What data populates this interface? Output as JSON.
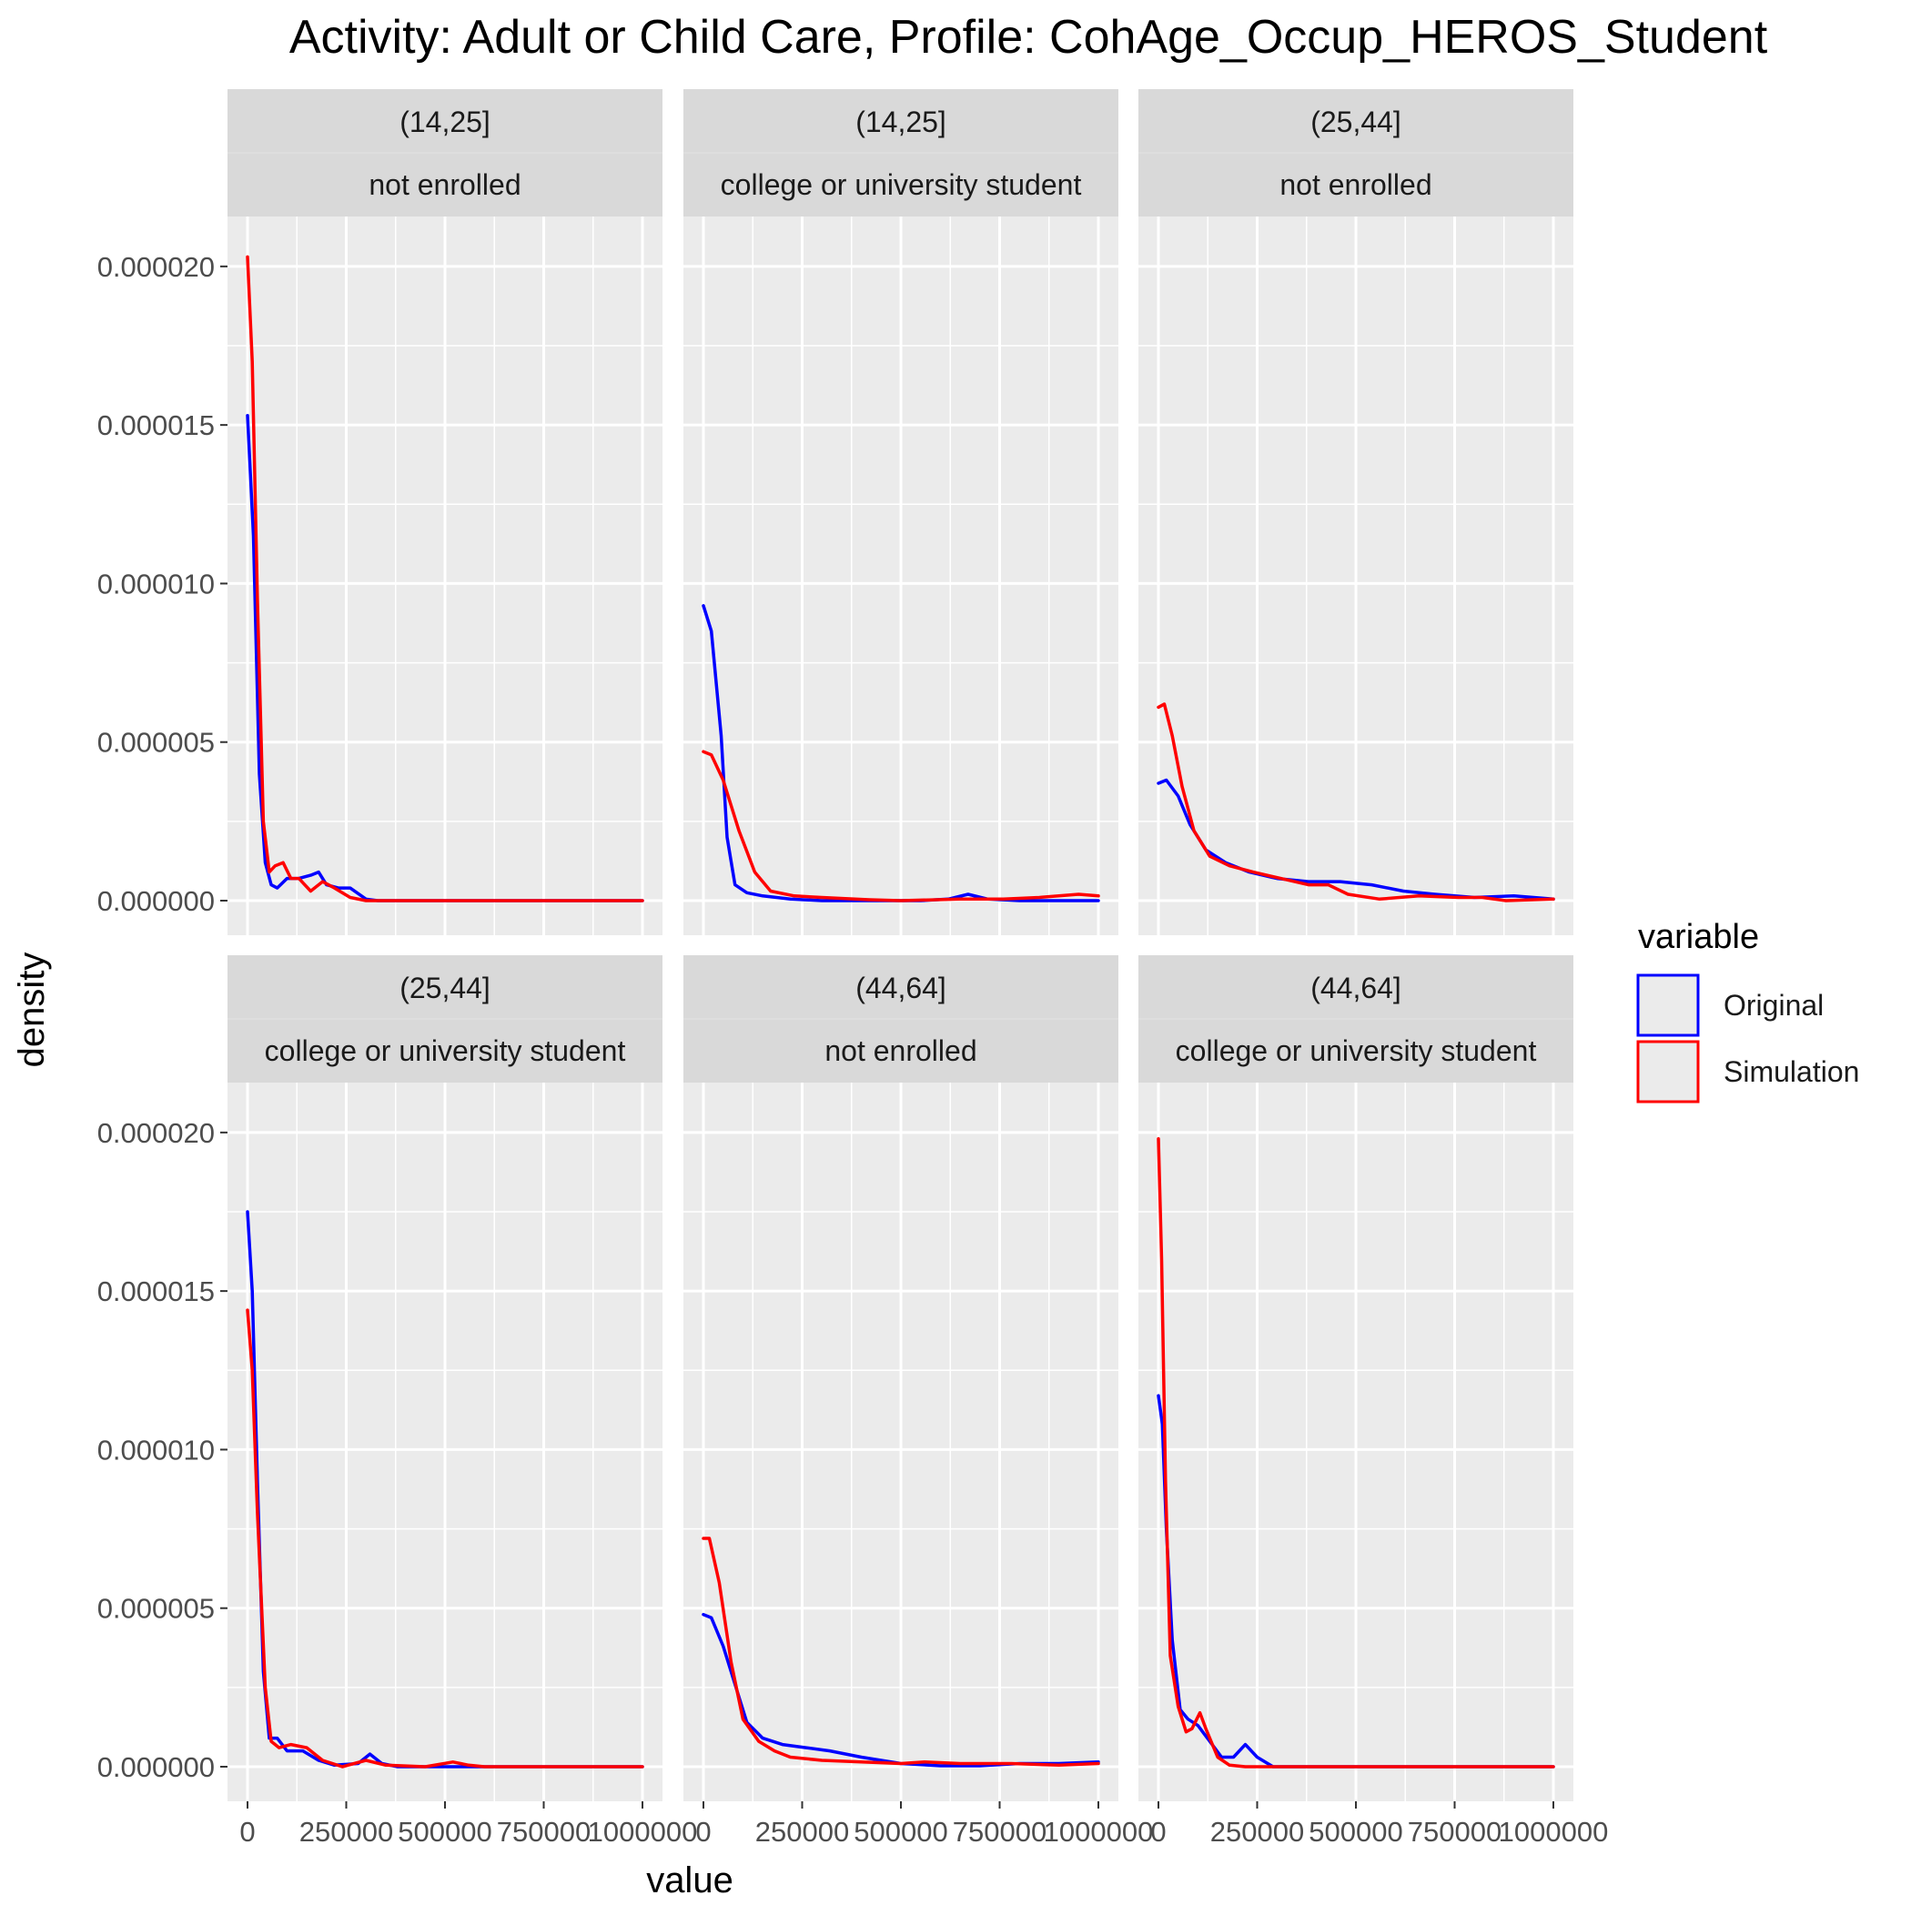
{
  "chart_data": {
    "type": "line",
    "title": "Activity: Adult or Child Care, Profile: CohAge_Occup_HEROS_Student",
    "xlabel": "value",
    "ylabel": "density",
    "xlim": [
      0,
      1000000
    ],
    "ylim": [
      0,
      2.1e-05
    ],
    "x_ticks": [
      0,
      250000,
      500000,
      750000,
      1000000
    ],
    "x_tick_labels": [
      "0",
      "250000",
      "500000",
      "750000",
      "1000000"
    ],
    "y_ticks": [
      0,
      5e-06,
      1e-05,
      1.5e-05,
      2e-05
    ],
    "y_tick_labels": [
      "0.000000",
      "0.000005",
      "0.000010",
      "0.000015",
      "0.000020"
    ],
    "grid": true,
    "legend": {
      "title": "variable",
      "placement": "right",
      "entries": [
        {
          "name": "Original",
          "color": "#0000ff"
        },
        {
          "name": "Simulation",
          "color": "#ff0000"
        }
      ]
    },
    "panels": [
      {
        "strip_top": "(14,25]",
        "strip_bottom": "not enrolled",
        "series": [
          {
            "name": "Original",
            "color": "#0000ff",
            "points": [
              [
                0,
                1.53e-05
              ],
              [
                15000,
                1.15e-05
              ],
              [
                30000,
                4e-06
              ],
              [
                45000,
                1.2e-06
              ],
              [
                60000,
                5e-07
              ],
              [
                75000,
                4e-07
              ],
              [
                100000,
                7e-07
              ],
              [
                130000,
                7e-07
              ],
              [
                160000,
                8e-07
              ],
              [
                180000,
                9e-07
              ],
              [
                200000,
                5e-07
              ],
              [
                230000,
                4e-07
              ],
              [
                260000,
                4e-07
              ],
              [
                300000,
                5e-08
              ],
              [
                330000,
                0
              ],
              [
                1000000,
                0
              ]
            ]
          },
          {
            "name": "Simulation",
            "color": "#ff0000",
            "points": [
              [
                0,
                2.03e-05
              ],
              [
                12000,
                1.7e-05
              ],
              [
                25000,
                9.5e-06
              ],
              [
                40000,
                2.5e-06
              ],
              [
                55000,
                9e-07
              ],
              [
                70000,
                1.1e-06
              ],
              [
                90000,
                1.2e-06
              ],
              [
                110000,
                7e-07
              ],
              [
                130000,
                7e-07
              ],
              [
                160000,
                3e-07
              ],
              [
                190000,
                6e-07
              ],
              [
                220000,
                4e-07
              ],
              [
                260000,
                1e-07
              ],
              [
                300000,
                0
              ],
              [
                1000000,
                0
              ]
            ]
          }
        ]
      },
      {
        "strip_top": "(14,25]",
        "strip_bottom": "college or university student",
        "series": [
          {
            "name": "Original",
            "color": "#0000ff",
            "points": [
              [
                0,
                9.3e-06
              ],
              [
                20000,
                8.5e-06
              ],
              [
                45000,
                5.2e-06
              ],
              [
                60000,
                2e-06
              ],
              [
                80000,
                5e-07
              ],
              [
                110000,
                2.5e-07
              ],
              [
                150000,
                1.5e-07
              ],
              [
                220000,
                5e-08
              ],
              [
                300000,
                0
              ],
              [
                550000,
                0
              ],
              [
                620000,
                5e-08
              ],
              [
                670000,
                2e-07
              ],
              [
                720000,
                5e-08
              ],
              [
                800000,
                0
              ],
              [
                1000000,
                0
              ]
            ]
          },
          {
            "name": "Simulation",
            "color": "#ff0000",
            "points": [
              [
                0,
                4.7e-06
              ],
              [
                20000,
                4.6e-06
              ],
              [
                50000,
                3.8e-06
              ],
              [
                90000,
                2.2e-06
              ],
              [
                130000,
                9e-07
              ],
              [
                170000,
                3e-07
              ],
              [
                230000,
                1.5e-07
              ],
              [
                300000,
                1e-07
              ],
              [
                420000,
                3e-08
              ],
              [
                500000,
                0
              ],
              [
                650000,
                5e-08
              ],
              [
                760000,
                5e-08
              ],
              [
                850000,
                1e-07
              ],
              [
                950000,
                2e-07
              ],
              [
                1000000,
                1.5e-07
              ]
            ]
          }
        ]
      },
      {
        "strip_top": "(25,44]",
        "strip_bottom": "not enrolled",
        "series": [
          {
            "name": "Original",
            "color": "#0000ff",
            "points": [
              [
                0,
                3.7e-06
              ],
              [
                20000,
                3.8e-06
              ],
              [
                50000,
                3.3e-06
              ],
              [
                80000,
                2.4e-06
              ],
              [
                120000,
                1.6e-06
              ],
              [
                170000,
                1.2e-06
              ],
              [
                230000,
                9e-07
              ],
              [
                300000,
                7e-07
              ],
              [
                380000,
                6e-07
              ],
              [
                460000,
                6e-07
              ],
              [
                540000,
                5e-07
              ],
              [
                620000,
                3e-07
              ],
              [
                700000,
                2e-07
              ],
              [
                800000,
                1e-07
              ],
              [
                900000,
                1.5e-07
              ],
              [
                1000000,
                5e-08
              ]
            ]
          },
          {
            "name": "Simulation",
            "color": "#ff0000",
            "points": [
              [
                0,
                6.1e-06
              ],
              [
                15000,
                6.2e-06
              ],
              [
                35000,
                5.2e-06
              ],
              [
                60000,
                3.6e-06
              ],
              [
                90000,
                2.2e-06
              ],
              [
                130000,
                1.4e-06
              ],
              [
                180000,
                1.1e-06
              ],
              [
                240000,
                9e-07
              ],
              [
                310000,
                7e-07
              ],
              [
                380000,
                5e-07
              ],
              [
                430000,
                5e-07
              ],
              [
                480000,
                2e-07
              ],
              [
                560000,
                5e-08
              ],
              [
                660000,
                1.5e-07
              ],
              [
                760000,
                1e-07
              ],
              [
                820000,
                1e-07
              ],
              [
                880000,
                0
              ],
              [
                1000000,
                5e-08
              ]
            ]
          }
        ]
      },
      {
        "strip_top": "(25,44]",
        "strip_bottom": "college or university student",
        "series": [
          {
            "name": "Original",
            "color": "#0000ff",
            "points": [
              [
                0,
                1.75e-05
              ],
              [
                12000,
                1.5e-05
              ],
              [
                25000,
                9e-06
              ],
              [
                40000,
                3e-06
              ],
              [
                55000,
                9e-07
              ],
              [
                75000,
                9e-07
              ],
              [
                100000,
                5e-07
              ],
              [
                140000,
                5e-07
              ],
              [
                180000,
                2e-07
              ],
              [
                220000,
                5e-08
              ],
              [
                280000,
                1e-07
              ],
              [
                310000,
                4e-07
              ],
              [
                340000,
                1e-07
              ],
              [
                380000,
                0
              ],
              [
                1000000,
                0
              ]
            ]
          },
          {
            "name": "Simulation",
            "color": "#ff0000",
            "points": [
              [
                0,
                1.44e-05
              ],
              [
                12000,
                1.25e-05
              ],
              [
                25000,
                8e-06
              ],
              [
                45000,
                2.5e-06
              ],
              [
                60000,
                8e-07
              ],
              [
                80000,
                6e-07
              ],
              [
                110000,
                7e-07
              ],
              [
                150000,
                6e-07
              ],
              [
                190000,
                2e-07
              ],
              [
                240000,
                0
              ],
              [
                300000,
                2e-07
              ],
              [
                350000,
                5e-08
              ],
              [
                450000,
                0
              ],
              [
                520000,
                1.5e-07
              ],
              [
                560000,
                5e-08
              ],
              [
                600000,
                0
              ],
              [
                1000000,
                0
              ]
            ]
          }
        ]
      },
      {
        "strip_top": "(44,64]",
        "strip_bottom": "not enrolled",
        "series": [
          {
            "name": "Original",
            "color": "#0000ff",
            "points": [
              [
                0,
                4.8e-06
              ],
              [
                20000,
                4.7e-06
              ],
              [
                50000,
                3.8e-06
              ],
              [
                80000,
                2.6e-06
              ],
              [
                110000,
                1.4e-06
              ],
              [
                150000,
                9e-07
              ],
              [
                200000,
                7e-07
              ],
              [
                260000,
                6e-07
              ],
              [
                320000,
                5e-07
              ],
              [
                400000,
                3e-07
              ],
              [
                500000,
                1e-07
              ],
              [
                600000,
                3e-08
              ],
              [
                700000,
                3e-08
              ],
              [
                800000,
                1e-07
              ],
              [
                900000,
                1e-07
              ],
              [
                1000000,
                1.5e-07
              ]
            ]
          },
          {
            "name": "Simulation",
            "color": "#ff0000",
            "points": [
              [
                0,
                7.2e-06
              ],
              [
                15000,
                7.2e-06
              ],
              [
                40000,
                5.8e-06
              ],
              [
                70000,
                3.3e-06
              ],
              [
                100000,
                1.5e-06
              ],
              [
                140000,
                8e-07
              ],
              [
                180000,
                5e-07
              ],
              [
                220000,
                3e-07
              ],
              [
                300000,
                2e-07
              ],
              [
                400000,
                1.5e-07
              ],
              [
                500000,
                1e-07
              ],
              [
                560000,
                1.5e-07
              ],
              [
                650000,
                1e-07
              ],
              [
                780000,
                1e-07
              ],
              [
                900000,
                5e-08
              ],
              [
                1000000,
                1e-07
              ]
            ]
          }
        ]
      },
      {
        "strip_top": "(44,64]",
        "strip_bottom": "college or university student",
        "series": [
          {
            "name": "Original",
            "color": "#0000ff",
            "points": [
              [
                0,
                1.17e-05
              ],
              [
                10000,
                1.08e-05
              ],
              [
                20000,
                7.5e-06
              ],
              [
                35000,
                4e-06
              ],
              [
                55000,
                1.8e-06
              ],
              [
                75000,
                1.5e-06
              ],
              [
                100000,
                1.3e-06
              ],
              [
                130000,
                8e-07
              ],
              [
                160000,
                3e-07
              ],
              [
                190000,
                3e-07
              ],
              [
                220000,
                7e-07
              ],
              [
                250000,
                3e-07
              ],
              [
                290000,
                0
              ],
              [
                1000000,
                0
              ]
            ]
          },
          {
            "name": "Simulation",
            "color": "#ff0000",
            "points": [
              [
                0,
                1.98e-05
              ],
              [
                8000,
                1.6e-05
              ],
              [
                18000,
                9e-06
              ],
              [
                30000,
                3.5e-06
              ],
              [
                50000,
                1.9e-06
              ],
              [
                70000,
                1.1e-06
              ],
              [
                85000,
                1.2e-06
              ],
              [
                105000,
                1.7e-06
              ],
              [
                120000,
                1.2e-06
              ],
              [
                150000,
                3e-07
              ],
              [
                180000,
                5e-08
              ],
              [
                220000,
                0
              ],
              [
                1000000,
                0
              ]
            ]
          }
        ]
      }
    ]
  }
}
